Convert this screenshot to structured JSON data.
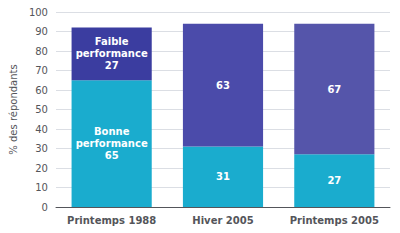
{
  "chart_data": {
    "type": "bar",
    "stacked": true,
    "categories": [
      "Printemps 1988",
      "Hiver 2005",
      "Printemps 2005"
    ],
    "series": [
      {
        "name": "Bonne\nperformance",
        "color": "#1AACCE",
        "values": [
          65,
          31,
          27
        ]
      },
      {
        "name": "Faible\nperformance",
        "colors": [
          "#3B3DA0",
          "#4B4BAA",
          "#5555AA"
        ],
        "values": [
          27,
          63,
          67
        ]
      }
    ],
    "ylabel": "% des répondants",
    "ylim": [
      0,
      100
    ],
    "yticks": [
      0,
      10,
      20,
      30,
      40,
      50,
      60,
      70,
      80,
      90,
      100
    ],
    "grid": true,
    "data_labels": true
  }
}
